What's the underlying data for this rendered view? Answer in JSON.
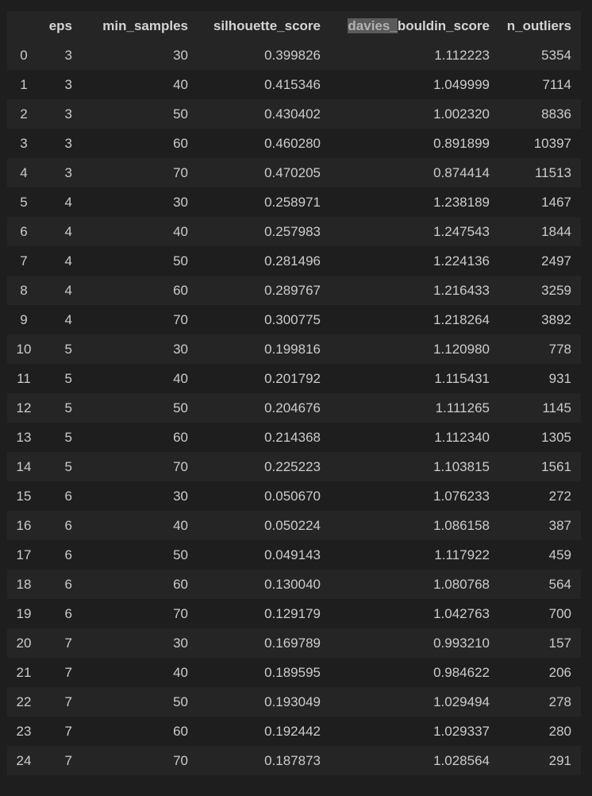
{
  "table": {
    "headers": {
      "index": "",
      "eps": "eps",
      "min_samples": "min_samples",
      "silhouette_score": "silhouette_score",
      "davies_bouldin_highlight": "davies_",
      "davies_bouldin_rest": "bouldin_score",
      "n_outliers": "n_outliers"
    },
    "rows": [
      {
        "index": "0",
        "eps": "3",
        "min_samples": "30",
        "silhouette_score": "0.399826",
        "davies_bouldin_score": "1.112223",
        "n_outliers": "5354"
      },
      {
        "index": "1",
        "eps": "3",
        "min_samples": "40",
        "silhouette_score": "0.415346",
        "davies_bouldin_score": "1.049999",
        "n_outliers": "7114"
      },
      {
        "index": "2",
        "eps": "3",
        "min_samples": "50",
        "silhouette_score": "0.430402",
        "davies_bouldin_score": "1.002320",
        "n_outliers": "8836"
      },
      {
        "index": "3",
        "eps": "3",
        "min_samples": "60",
        "silhouette_score": "0.460280",
        "davies_bouldin_score": "0.891899",
        "n_outliers": "10397"
      },
      {
        "index": "4",
        "eps": "3",
        "min_samples": "70",
        "silhouette_score": "0.470205",
        "davies_bouldin_score": "0.874414",
        "n_outliers": "11513"
      },
      {
        "index": "5",
        "eps": "4",
        "min_samples": "30",
        "silhouette_score": "0.258971",
        "davies_bouldin_score": "1.238189",
        "n_outliers": "1467"
      },
      {
        "index": "6",
        "eps": "4",
        "min_samples": "40",
        "silhouette_score": "0.257983",
        "davies_bouldin_score": "1.247543",
        "n_outliers": "1844"
      },
      {
        "index": "7",
        "eps": "4",
        "min_samples": "50",
        "silhouette_score": "0.281496",
        "davies_bouldin_score": "1.224136",
        "n_outliers": "2497"
      },
      {
        "index": "8",
        "eps": "4",
        "min_samples": "60",
        "silhouette_score": "0.289767",
        "davies_bouldin_score": "1.216433",
        "n_outliers": "3259"
      },
      {
        "index": "9",
        "eps": "4",
        "min_samples": "70",
        "silhouette_score": "0.300775",
        "davies_bouldin_score": "1.218264",
        "n_outliers": "3892"
      },
      {
        "index": "10",
        "eps": "5",
        "min_samples": "30",
        "silhouette_score": "0.199816",
        "davies_bouldin_score": "1.120980",
        "n_outliers": "778"
      },
      {
        "index": "11",
        "eps": "5",
        "min_samples": "40",
        "silhouette_score": "0.201792",
        "davies_bouldin_score": "1.115431",
        "n_outliers": "931"
      },
      {
        "index": "12",
        "eps": "5",
        "min_samples": "50",
        "silhouette_score": "0.204676",
        "davies_bouldin_score": "1.111265",
        "n_outliers": "1145"
      },
      {
        "index": "13",
        "eps": "5",
        "min_samples": "60",
        "silhouette_score": "0.214368",
        "davies_bouldin_score": "1.112340",
        "n_outliers": "1305"
      },
      {
        "index": "14",
        "eps": "5",
        "min_samples": "70",
        "silhouette_score": "0.225223",
        "davies_bouldin_score": "1.103815",
        "n_outliers": "1561"
      },
      {
        "index": "15",
        "eps": "6",
        "min_samples": "30",
        "silhouette_score": "0.050670",
        "davies_bouldin_score": "1.076233",
        "n_outliers": "272"
      },
      {
        "index": "16",
        "eps": "6",
        "min_samples": "40",
        "silhouette_score": "0.050224",
        "davies_bouldin_score": "1.086158",
        "n_outliers": "387"
      },
      {
        "index": "17",
        "eps": "6",
        "min_samples": "50",
        "silhouette_score": "0.049143",
        "davies_bouldin_score": "1.117922",
        "n_outliers": "459"
      },
      {
        "index": "18",
        "eps": "6",
        "min_samples": "60",
        "silhouette_score": "0.130040",
        "davies_bouldin_score": "1.080768",
        "n_outliers": "564"
      },
      {
        "index": "19",
        "eps": "6",
        "min_samples": "70",
        "silhouette_score": "0.129179",
        "davies_bouldin_score": "1.042763",
        "n_outliers": "700"
      },
      {
        "index": "20",
        "eps": "7",
        "min_samples": "30",
        "silhouette_score": "0.169789",
        "davies_bouldin_score": "0.993210",
        "n_outliers": "157"
      },
      {
        "index": "21",
        "eps": "7",
        "min_samples": "40",
        "silhouette_score": "0.189595",
        "davies_bouldin_score": "0.984622",
        "n_outliers": "206"
      },
      {
        "index": "22",
        "eps": "7",
        "min_samples": "50",
        "silhouette_score": "0.193049",
        "davies_bouldin_score": "1.029494",
        "n_outliers": "278"
      },
      {
        "index": "23",
        "eps": "7",
        "min_samples": "60",
        "silhouette_score": "0.192442",
        "davies_bouldin_score": "1.029337",
        "n_outliers": "280"
      },
      {
        "index": "24",
        "eps": "7",
        "min_samples": "70",
        "silhouette_score": "0.187873",
        "davies_bouldin_score": "1.028564",
        "n_outliers": "291"
      }
    ]
  },
  "colors": {
    "background": "#1e1e1e",
    "row_alt": "#252526",
    "text": "#cccccc",
    "selection_highlight": "#5a5a5a"
  }
}
